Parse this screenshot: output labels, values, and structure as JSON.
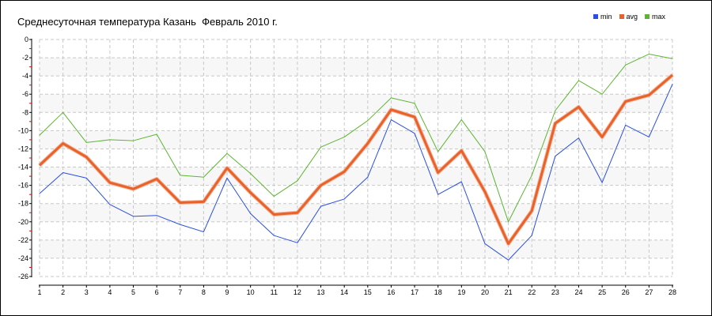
{
  "chart_data": {
    "type": "line",
    "title": "Среднесуточная температура Казань  Февраль 2010 г.",
    "x": [
      1,
      2,
      3,
      4,
      5,
      6,
      7,
      8,
      9,
      10,
      11,
      12,
      13,
      14,
      15,
      16,
      17,
      18,
      19,
      20,
      21,
      22,
      23,
      24,
      25,
      26,
      27,
      28
    ],
    "xlim": [
      1,
      28
    ],
    "ylim": [
      -26,
      0
    ],
    "yticks": [
      0,
      -2,
      -4,
      -6,
      -8,
      -10,
      -12,
      -14,
      -16,
      -18,
      -20,
      -22,
      -24,
      -26
    ],
    "grid": true,
    "legend_placement": "top-right",
    "series": [
      {
        "name": "min",
        "color": "#2a4fe0",
        "values": [
          -16.9,
          -14.6,
          -15.2,
          -18.1,
          -19.4,
          -19.3,
          -20.3,
          -21.1,
          -15.2,
          -19.1,
          -21.5,
          -22.3,
          -18.3,
          -17.5,
          -15.1,
          -8.8,
          -10.3,
          -17.0,
          -15.6,
          -22.4,
          -24.2,
          -21.5,
          -12.8,
          -10.8,
          -15.7,
          -9.4,
          -10.7,
          -4.9
        ]
      },
      {
        "name": "avg",
        "color": "#e8622a",
        "values": [
          -13.8,
          -11.4,
          -12.9,
          -15.7,
          -16.4,
          -15.3,
          -17.9,
          -17.8,
          -14.1,
          -16.8,
          -19.2,
          -19.0,
          -16.0,
          -14.5,
          -11.4,
          -7.7,
          -8.5,
          -14.6,
          -12.2,
          -16.7,
          -22.4,
          -18.8,
          -9.2,
          -7.4,
          -10.7,
          -6.8,
          -6.1,
          -3.9
        ]
      },
      {
        "name": "max",
        "color": "#5cb531",
        "values": [
          -10.5,
          -8.0,
          -11.3,
          -11.0,
          -11.1,
          -10.4,
          -14.9,
          -15.1,
          -12.5,
          -14.7,
          -17.2,
          -15.5,
          -11.8,
          -10.7,
          -8.9,
          -6.4,
          -7.0,
          -12.3,
          -8.8,
          -12.3,
          -20.0,
          -14.9,
          -7.8,
          -4.5,
          -6.0,
          -2.8,
          -1.6,
          -2.1
        ]
      }
    ]
  }
}
